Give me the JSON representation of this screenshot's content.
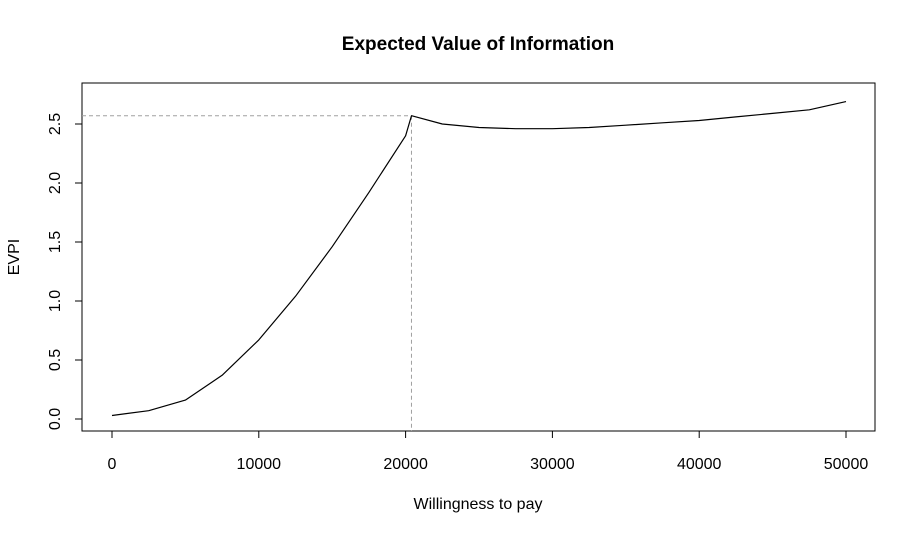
{
  "chart_data": {
    "type": "line",
    "title": "Expected Value of Information",
    "xlabel": "Willingness to pay",
    "ylabel": "EVPI",
    "xlim": [
      0,
      50000
    ],
    "ylim": [
      0,
      2.7
    ],
    "xticks": [
      "0",
      "10000",
      "20000",
      "30000",
      "40000",
      "50000"
    ],
    "yticks": [
      "0.0",
      "0.5",
      "1.0",
      "1.5",
      "2.0",
      "2.5"
    ],
    "x": [
      0,
      2500,
      5000,
      7500,
      10000,
      12500,
      15000,
      17500,
      20000,
      20400,
      22500,
      25000,
      27500,
      30000,
      32500,
      35000,
      37500,
      40000,
      42500,
      45000,
      47500,
      50000
    ],
    "y": [
      0.03,
      0.07,
      0.16,
      0.37,
      0.67,
      1.04,
      1.46,
      1.92,
      2.4,
      2.57,
      2.5,
      2.47,
      2.46,
      2.46,
      2.47,
      2.49,
      2.51,
      2.53,
      2.56,
      2.59,
      2.62,
      2.69
    ],
    "reference": {
      "x": 20400,
      "y": 2.57
    },
    "colors": {
      "line": "#000000",
      "reference": "#a0a0a0"
    },
    "grid": false,
    "legend": "none"
  }
}
